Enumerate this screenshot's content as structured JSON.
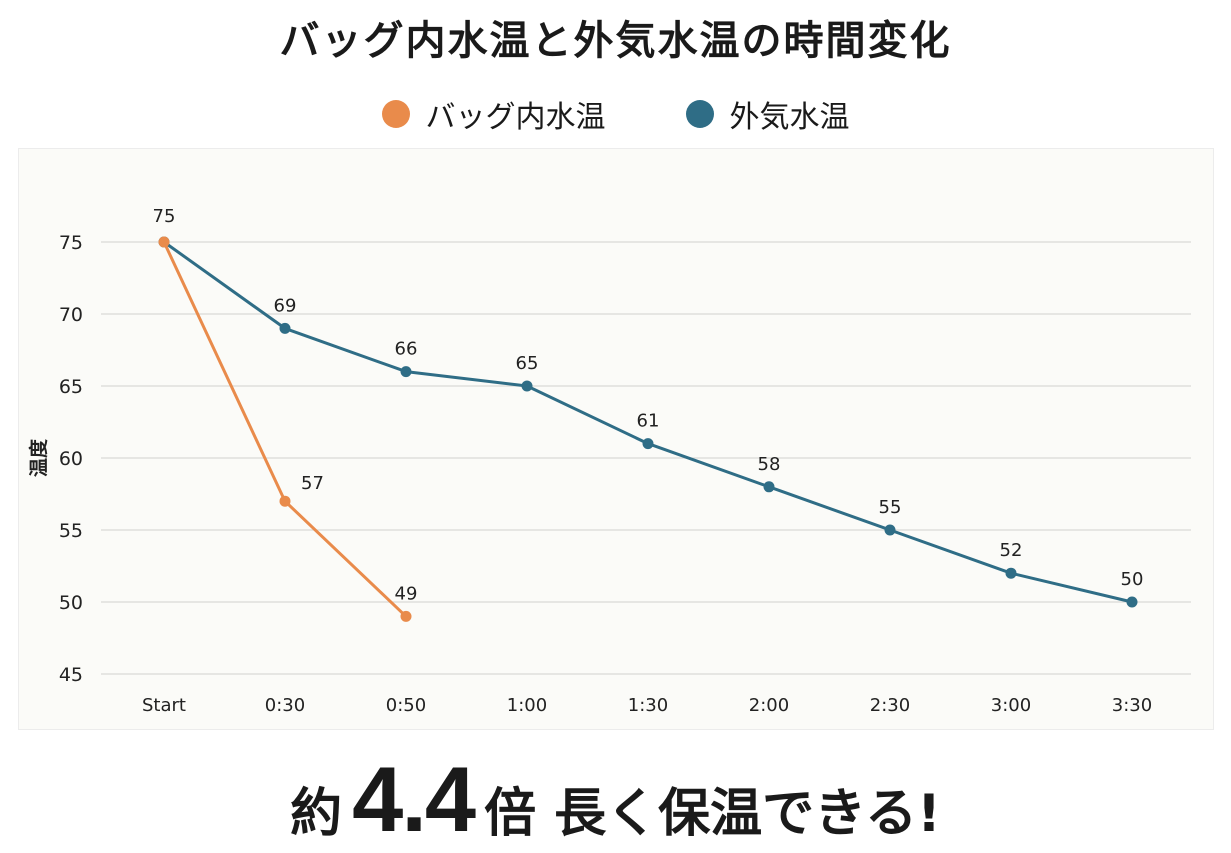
{
  "title": "バッグ内水温と外気水温の時間変化",
  "headline": {
    "prefix": "約",
    "number": "4.4",
    "suffix": "倍 長く保温できる!"
  },
  "chart_data": {
    "type": "line",
    "title": "バッグ内水温と外気水温の時間変化",
    "ylabel": "温度",
    "xlabel": "",
    "categories": [
      "Start",
      "0:30",
      "0:50",
      "1:00",
      "1:30",
      "2:00",
      "2:30",
      "3:00",
      "3:30"
    ],
    "ylim": [
      45,
      75
    ],
    "yticks": [
      45,
      50,
      55,
      60,
      65,
      70,
      75
    ],
    "grid": true,
    "legend_position": "top",
    "series": [
      {
        "name": "バッグ内水温",
        "color": "#e98b4b",
        "values": [
          75,
          57,
          49,
          null,
          null,
          null,
          null,
          null,
          null
        ]
      },
      {
        "name": "外気水温",
        "color": "#2f6d86",
        "values": [
          75,
          69,
          66,
          65,
          61,
          58,
          55,
          52,
          50
        ]
      }
    ]
  }
}
